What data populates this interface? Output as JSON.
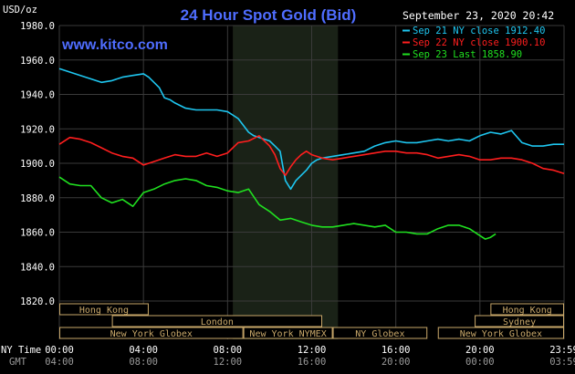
{
  "header": {
    "unit": "USD/oz",
    "title": "24 Hour Spot Gold (Bid)",
    "datetime": "September 23, 2020 20:42",
    "watermark": "www.kitco.com"
  },
  "legend_labels": {
    "nytime": "NY Time",
    "gmt": "GMT"
  },
  "sessions": [
    {
      "label": "Hong Kong",
      "start": 0.0,
      "end": 4.25,
      "row": 0
    },
    {
      "label": "London",
      "start": 2.5,
      "end": 12.5,
      "row": 1
    },
    {
      "label": "New York Globex",
      "start": 0.0,
      "end": 8.75,
      "row": 2
    },
    {
      "label": "New York NYMEX",
      "start": 8.75,
      "end": 13.0,
      "row": 2
    },
    {
      "label": "NY Globex",
      "start": 13.0,
      "end": 17.5,
      "row": 2
    },
    {
      "label": "Hong Kong",
      "start": 20.5,
      "end": 24.0,
      "row": 0
    },
    {
      "label": "Sydney",
      "start": 19.75,
      "end": 24.0,
      "row": 1
    },
    {
      "label": "New York Globex",
      "start": 18.0,
      "end": 24.0,
      "row": 2
    }
  ],
  "colors": {
    "background": "#000000",
    "grid": "#3a3a3a",
    "axis_text": "#ffffff",
    "gmt_text": "#9a9a9a",
    "title": "#4f6dff",
    "nymex_shade": "#1a2217",
    "session_fill": "#000000",
    "session_border": "#c9a86a",
    "session_text": "#c9a86a",
    "sep21": "#1ec6f0",
    "sep22": "#ff1e1e",
    "sep23": "#20e020"
  },
  "chart_data": {
    "type": "line",
    "title": "24 Hour Spot Gold (Bid)",
    "ylabel": "USD/oz",
    "ylim": [
      1820,
      1980
    ],
    "yticks": [
      1820,
      1840,
      1860,
      1880,
      1900,
      1920,
      1940,
      1960,
      1980
    ],
    "ytick_labels": [
      "1820.0",
      "1840.0",
      "1860.0",
      "1880.0",
      "1900.0",
      "1920.0",
      "1940.0",
      "1960.0",
      "1980.0"
    ],
    "xlim": [
      0,
      24
    ],
    "xticks": [
      0,
      4,
      8,
      12,
      16,
      20,
      24
    ],
    "xtick_labels_ny": [
      "00:00",
      "04:00",
      "08:00",
      "12:00",
      "16:00",
      "20:00",
      "23:59"
    ],
    "xtick_labels_gmt": [
      "04:00",
      "08:00",
      "12:00",
      "16:00",
      "20:00",
      "00:00",
      "03:59"
    ],
    "shaded_region": [
      8.25,
      13.25
    ],
    "grid": true,
    "legend_position": "top-right",
    "series": [
      {
        "name": "Sep 21 NY close 1912.40",
        "x": [
          0,
          0.5,
          1,
          1.5,
          2,
          2.5,
          3,
          3.5,
          4,
          4.25,
          4.75,
          5,
          5.25,
          5.5,
          6,
          6.5,
          7,
          7.5,
          8,
          8.5,
          9,
          9.25,
          9.5,
          10,
          10.25,
          10.5,
          10.75,
          11,
          11.25,
          11.5,
          11.75,
          12,
          12.25,
          12.5,
          13,
          13.5,
          14,
          14.5,
          15,
          15.5,
          16,
          16.5,
          17,
          17.5,
          18,
          18.5,
          19,
          19.5,
          20,
          20.5,
          21,
          21.5,
          22,
          22.5,
          23,
          23.5,
          24
        ],
        "y": [
          1955,
          1953,
          1951,
          1949,
          1947,
          1948,
          1950,
          1951,
          1952,
          1950,
          1944,
          1938,
          1937,
          1935,
          1932,
          1931,
          1931,
          1931,
          1930,
          1926,
          1918,
          1916,
          1915,
          1913,
          1910,
          1907,
          1890,
          1885,
          1890,
          1893,
          1896,
          1900,
          1902,
          1903,
          1904,
          1905,
          1906,
          1907,
          1910,
          1912,
          1913,
          1912,
          1912,
          1913,
          1914,
          1913,
          1914,
          1913,
          1916,
          1918,
          1917,
          1919,
          1912,
          1910,
          1910,
          1911,
          1911
        ]
      },
      {
        "name": "Sep 22 NY close 1900.10",
        "x": [
          0,
          0.5,
          1,
          1.5,
          2,
          2.5,
          3,
          3.5,
          4,
          4.5,
          5,
          5.5,
          6,
          6.5,
          7,
          7.5,
          8,
          8.5,
          9,
          9.5,
          10,
          10.25,
          10.5,
          10.75,
          11,
          11.25,
          11.5,
          11.75,
          12,
          12.5,
          13,
          13.5,
          14,
          14.5,
          15,
          15.5,
          16,
          16.5,
          17,
          17.5,
          18,
          18.5,
          19,
          19.5,
          20,
          20.5,
          21,
          21.5,
          22,
          22.5,
          23,
          23.5,
          24
        ],
        "y": [
          1911,
          1915,
          1914,
          1912,
          1909,
          1906,
          1904,
          1903,
          1899,
          1901,
          1903,
          1905,
          1904,
          1904,
          1906,
          1904,
          1906,
          1912,
          1913,
          1916,
          1910,
          1905,
          1897,
          1893,
          1898,
          1902,
          1905,
          1907,
          1905,
          1903,
          1902,
          1903,
          1904,
          1905,
          1906,
          1907,
          1907,
          1906,
          1906,
          1905,
          1903,
          1904,
          1905,
          1904,
          1902,
          1902,
          1903,
          1903,
          1902,
          1900,
          1897,
          1896,
          1894
        ]
      },
      {
        "name": "Sep 23 Last 1858.90",
        "x": [
          0,
          0.5,
          1,
          1.5,
          2,
          2.5,
          3,
          3.5,
          4,
          4.5,
          5,
          5.5,
          6,
          6.5,
          7,
          7.5,
          8,
          8.5,
          9,
          9.5,
          10,
          10.5,
          11,
          11.5,
          12,
          12.5,
          13,
          13.5,
          14,
          14.5,
          15,
          15.5,
          16,
          16.5,
          17,
          17.5,
          18,
          18.5,
          19,
          19.5,
          20,
          20.25,
          20.5,
          20.75
        ],
        "y": [
          1892,
          1888,
          1887,
          1887,
          1880,
          1877,
          1879,
          1875,
          1883,
          1885,
          1888,
          1890,
          1891,
          1890,
          1887,
          1886,
          1884,
          1883,
          1885,
          1876,
          1872,
          1867,
          1868,
          1866,
          1864,
          1863,
          1863,
          1864,
          1865,
          1864,
          1863,
          1864,
          1860,
          1860,
          1859,
          1859,
          1862,
          1864,
          1864,
          1862,
          1858,
          1856,
          1857,
          1859
        ]
      }
    ]
  }
}
